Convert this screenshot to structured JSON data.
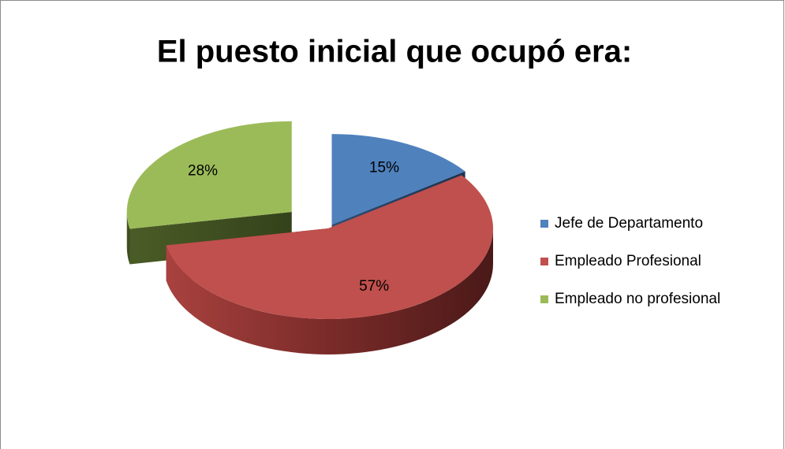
{
  "chart_data": {
    "type": "pie",
    "title": "El puesto inicial que ocupó era:",
    "categories": [
      "Jefe de Departamento",
      "Empleado Profesional",
      "Empleado no profesional"
    ],
    "values": [
      15,
      57,
      28
    ],
    "value_labels": [
      "15%",
      "57%",
      "28%"
    ],
    "colors": [
      "#4f81bd",
      "#c0504d",
      "#9bbb59"
    ],
    "legend": "right"
  }
}
